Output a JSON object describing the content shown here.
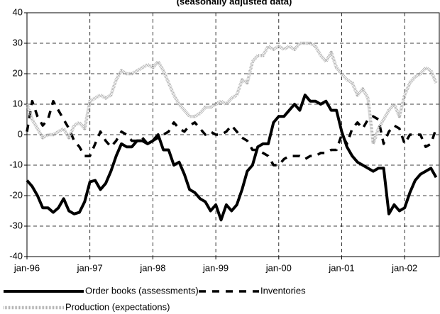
{
  "chart_data": {
    "type": "line",
    "title": "(seasonally adjusted data)",
    "categories": [
      "jan-96",
      null,
      null,
      null,
      null,
      null,
      null,
      null,
      null,
      null,
      null,
      null,
      "jan-97",
      null,
      null,
      null,
      null,
      null,
      null,
      null,
      null,
      null,
      null,
      null,
      "jan-98",
      null,
      null,
      null,
      null,
      null,
      null,
      null,
      null,
      null,
      null,
      null,
      "jan-99",
      null,
      null,
      null,
      null,
      null,
      null,
      null,
      null,
      null,
      null,
      null,
      "jan-00",
      null,
      null,
      null,
      null,
      null,
      null,
      null,
      null,
      null,
      null,
      null,
      "jan-01",
      null,
      null,
      null,
      null,
      null,
      null,
      null,
      null,
      null,
      null,
      null,
      "jan-02",
      null,
      null,
      null,
      null,
      null,
      null
    ],
    "series": [
      {
        "name": "Order books (assessments)",
        "color": "#000000",
        "style": "solid",
        "values": [
          -15,
          -17,
          -20,
          -24,
          -24,
          -25.5,
          -24,
          -21,
          -25,
          -26,
          -25.5,
          -22,
          -15.5,
          -15,
          -18,
          -16,
          -12,
          -7,
          -3,
          -4,
          -4,
          -2,
          -2,
          -3,
          -2,
          0,
          -5,
          -5,
          -10,
          -9,
          -13,
          -18,
          -19,
          -21,
          -22,
          -25,
          -23,
          -28,
          -23,
          -25,
          -23,
          -18,
          -12,
          -10,
          -4,
          -3,
          -3,
          4,
          6,
          6,
          8,
          10,
          8,
          13,
          11,
          11,
          10,
          11,
          8,
          8,
          1,
          -4,
          -7,
          -9,
          -10,
          -11,
          -12,
          -11,
          -11,
          -26,
          -23,
          -25,
          -24,
          -19,
          -15,
          -13,
          -12,
          -11,
          -14
        ]
      },
      {
        "name": "Inventories",
        "color": "#000000",
        "style": "dashed",
        "values": [
          1,
          11,
          6,
          3,
          5,
          11,
          8,
          5,
          2,
          -2,
          -4,
          -7,
          -7,
          -3,
          1,
          -2,
          -4,
          -2,
          1,
          0,
          -2,
          -2,
          -1,
          -3,
          -2,
          -1,
          0,
          1,
          4,
          2,
          1,
          3,
          4,
          2,
          0,
          1,
          0,
          0,
          1,
          3,
          1,
          -1,
          -2,
          -5,
          -5,
          -6,
          -7,
          -10,
          -10,
          -8,
          -7,
          -7,
          -7,
          -8,
          -7,
          -7,
          -6,
          -6,
          -5,
          -5,
          0,
          -3,
          2,
          4,
          2,
          5,
          6,
          5,
          -3,
          1,
          3,
          2,
          -3,
          0,
          0,
          0,
          -4,
          -3,
          2
        ]
      },
      {
        "name": "Production (expectations)",
        "color": "#b0b0b0",
        "style": "hatched",
        "values": [
          10,
          5,
          2,
          -1,
          0,
          0,
          1,
          2,
          -1,
          3,
          4,
          2,
          11,
          12,
          13,
          12,
          13,
          18,
          21,
          20,
          20,
          21,
          22,
          23,
          22,
          24,
          21,
          17,
          13,
          10,
          8,
          6,
          6,
          7,
          9,
          9,
          10,
          11,
          10,
          12,
          13,
          18,
          17,
          24,
          26,
          26,
          29,
          28,
          29,
          28,
          29,
          28,
          30,
          30,
          30,
          29,
          26,
          24,
          27,
          22,
          20,
          18,
          17,
          13,
          15,
          12,
          -3,
          2,
          5,
          8,
          10,
          6,
          13,
          17,
          19,
          20,
          22,
          21,
          17
        ]
      }
    ],
    "ylim": [
      -40,
      40
    ],
    "yticks": [
      -40,
      -30,
      -20,
      -10,
      0,
      10,
      20,
      30,
      40
    ],
    "grid": true
  }
}
